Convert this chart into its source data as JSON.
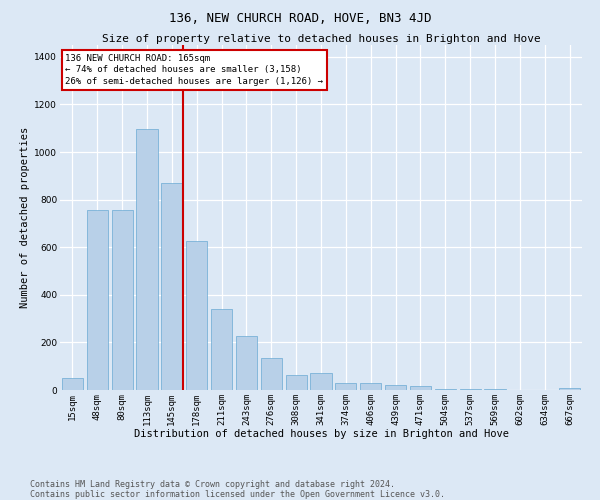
{
  "title": "136, NEW CHURCH ROAD, HOVE, BN3 4JD",
  "subtitle": "Size of property relative to detached houses in Brighton and Hove",
  "xlabel": "Distribution of detached houses by size in Brighton and Hove",
  "ylabel": "Number of detached properties",
  "categories": [
    "15sqm",
    "48sqm",
    "80sqm",
    "113sqm",
    "145sqm",
    "178sqm",
    "211sqm",
    "243sqm",
    "276sqm",
    "308sqm",
    "341sqm",
    "374sqm",
    "406sqm",
    "439sqm",
    "471sqm",
    "504sqm",
    "537sqm",
    "569sqm",
    "602sqm",
    "634sqm",
    "667sqm"
  ],
  "values": [
    50,
    755,
    755,
    1095,
    870,
    625,
    340,
    225,
    135,
    65,
    70,
    30,
    28,
    20,
    15,
    5,
    5,
    3,
    2,
    2,
    10
  ],
  "bar_color": "#b8d0e8",
  "bar_edge_color": "#6aaad4",
  "vline_color": "#cc0000",
  "vline_pos": 4.45,
  "annotation_text": "136 NEW CHURCH ROAD: 165sqm\n← 74% of detached houses are smaller (3,158)\n26% of semi-detached houses are larger (1,126) →",
  "ylim_max": 1450,
  "yticks": [
    0,
    200,
    400,
    600,
    800,
    1000,
    1200,
    1400
  ],
  "background_color": "#dce8f5",
  "grid_color": "#ffffff",
  "title_fontsize": 9,
  "subtitle_fontsize": 8,
  "label_fontsize": 7.5,
  "tick_fontsize": 6.5,
  "annot_fontsize": 6.5,
  "footer_fontsize": 6,
  "footer_line1": "Contains HM Land Registry data © Crown copyright and database right 2024.",
  "footer_line2": "Contains public sector information licensed under the Open Government Licence v3.0."
}
